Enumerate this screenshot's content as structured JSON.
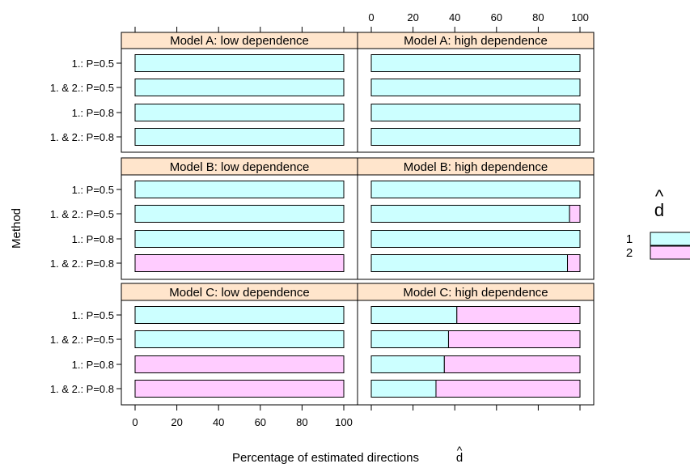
{
  "chart_data": {
    "type": "bar",
    "orientation": "horizontal",
    "stacked": true,
    "xlabel": "Percentage of estimated directions",
    "xlabel_symbol": "d",
    "xlabel_hat": "^",
    "ylabel": "Method",
    "xlim": [
      0,
      100
    ],
    "x_ticks": [
      "0",
      "20",
      "40",
      "60",
      "80",
      "100"
    ],
    "categories": [
      "1.: P=0.5",
      "1. & 2.: P=0.5",
      "1.: P=0.8",
      "1. & 2.: P=0.8"
    ],
    "legend": {
      "title": "d",
      "title_hat": "^",
      "placement": "right",
      "items": [
        {
          "label": "1",
          "color": "#ccffff"
        },
        {
          "label": "2",
          "color": "#ffccff"
        }
      ]
    },
    "colors": {
      "d1": "#ccffff",
      "d2": "#ffccff",
      "strip": "#ffe5cc"
    },
    "panels": [
      {
        "title": "Model A: low dependence",
        "d1": [
          100,
          100,
          100,
          100
        ]
      },
      {
        "title": "Model A: high dependence",
        "d1": [
          100,
          100,
          100,
          100
        ]
      },
      {
        "title": "Model B: low dependence",
        "d1": [
          100,
          100,
          100,
          0
        ]
      },
      {
        "title": "Model B: high dependence",
        "d1": [
          100,
          95,
          100,
          94
        ]
      },
      {
        "title": "Model C: low dependence",
        "d1": [
          100,
          100,
          0,
          0
        ]
      },
      {
        "title": "Model C: high dependence",
        "d1": [
          41,
          37,
          35,
          31
        ]
      }
    ]
  }
}
